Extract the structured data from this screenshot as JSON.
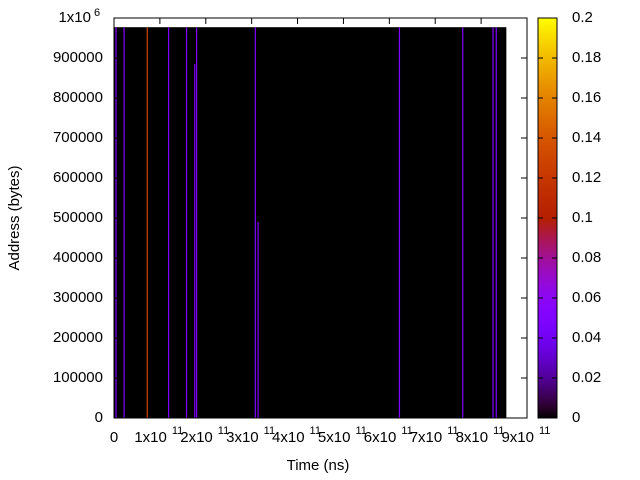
{
  "chart_data": {
    "type": "heatmap",
    "xlabel": "Time (ns)",
    "ylabel": "Address (bytes)",
    "xlim": [
      0,
      900000000000
    ],
    "ylim": [
      0,
      1000000
    ],
    "xticks": [
      0,
      {
        "value": 100000000000,
        "label": "1x10",
        "sup": "11"
      },
      {
        "value": 200000000000,
        "label": "2x10",
        "sup": "11"
      },
      {
        "value": 300000000000,
        "label": "3x10",
        "sup": "11"
      },
      {
        "value": 400000000000,
        "label": "4x10",
        "sup": "11"
      },
      {
        "value": 500000000000,
        "label": "5x10",
        "sup": "11"
      },
      {
        "value": 600000000000,
        "label": "6x10",
        "sup": "11"
      },
      {
        "value": 700000000000,
        "label": "7x10",
        "sup": "11"
      },
      {
        "value": 800000000000,
        "label": "8x10",
        "sup": "11"
      },
      {
        "value": 900000000000,
        "label": "9x10",
        "sup": "11"
      }
    ],
    "yticks": [
      0,
      100000,
      200000,
      300000,
      400000,
      500000,
      600000,
      700000,
      800000,
      900000,
      {
        "value": 1000000,
        "label": "1x10",
        "sup": "6"
      }
    ],
    "extent": {
      "x": [
        0,
        855000000000
      ],
      "y": [
        0,
        977000
      ],
      "value": 0
    },
    "stripes": [
      {
        "x": 4400000000,
        "y_top": 977000,
        "value": 0.05
      },
      {
        "x": 22000000000,
        "y_top": 977000,
        "value": 0.05
      },
      {
        "x": 72500000000,
        "y_top": 977000,
        "value": 0.13
      },
      {
        "x": 119000000000,
        "y_top": 977000,
        "value": 0.05
      },
      {
        "x": 158000000000,
        "y_top": 977000,
        "value": 0.05
      },
      {
        "x": 176000000000,
        "y_top": 885000,
        "value": 0.05
      },
      {
        "x": 180000000000,
        "y_top": 977000,
        "value": 0.05
      },
      {
        "x": 308000000000,
        "y_top": 977000,
        "value": 0.05
      },
      {
        "x": 314000000000,
        "y_top": 490000,
        "value": 0.05
      },
      {
        "x": 622000000000,
        "y_top": 977000,
        "value": 0.05
      },
      {
        "x": 760000000000,
        "y_top": 977000,
        "value": 0.05
      },
      {
        "x": 826000000000,
        "y_top": 977000,
        "value": 0.05
      },
      {
        "x": 833000000000,
        "y_top": 977000,
        "value": 0.05
      }
    ],
    "colorbar": {
      "lim": [
        0,
        0.2
      ],
      "ticks": [
        0,
        0.02,
        0.04,
        0.06,
        0.08,
        0.1,
        0.12,
        0.14,
        0.16,
        0.18,
        0.2
      ]
    }
  }
}
